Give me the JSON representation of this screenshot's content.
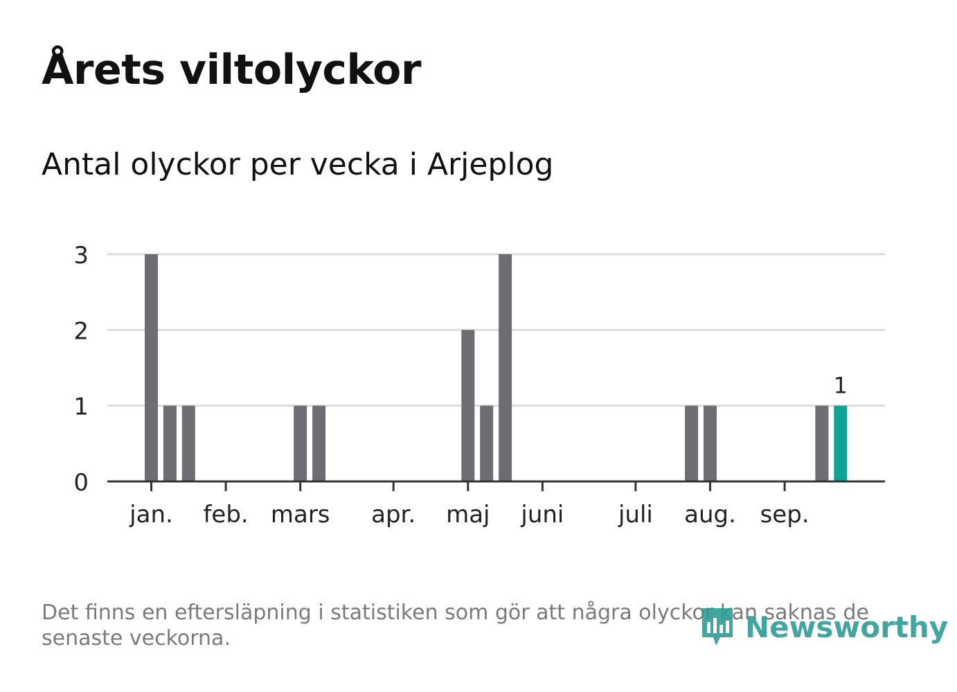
{
  "title": "Årets viltolyckor",
  "subtitle": "Antal olyckor per vecka i Arjeplog",
  "footnote": "Det finns en eftersläpning i statistiken som gör att några olyckor kan saknas de senaste veckorna.",
  "brand": {
    "name": "Newsworthy",
    "icon": "newsworthy-logo-icon",
    "color": "#2e9c96"
  },
  "colors": {
    "bar": "#6e6d72",
    "highlight": "#0fa396",
    "grid": "#dcdcdc",
    "axis": "#333333"
  },
  "chart_data": {
    "type": "bar",
    "title": "Antal olyckor per vecka i Arjeplog",
    "xlabel": "",
    "ylabel": "",
    "ylim": [
      0,
      3
    ],
    "yticks": [
      0,
      1,
      2,
      3
    ],
    "grid": true,
    "weeks": [
      1,
      2,
      3,
      4,
      5,
      6,
      7,
      8,
      9,
      10,
      11,
      12,
      13,
      14,
      15,
      16,
      17,
      18,
      19,
      20,
      21,
      22,
      23,
      24,
      25,
      26,
      27,
      28,
      29,
      30,
      31,
      32,
      33,
      34,
      35,
      36,
      37,
      38
    ],
    "values": [
      3,
      1,
      1,
      0,
      0,
      0,
      0,
      0,
      1,
      1,
      0,
      0,
      0,
      0,
      0,
      0,
      0,
      2,
      1,
      3,
      0,
      0,
      0,
      0,
      0,
      0,
      0,
      0,
      0,
      1,
      1,
      0,
      0,
      0,
      0,
      0,
      1,
      1
    ],
    "highlight_index": 37,
    "highlight_label": "1",
    "month_ticks": [
      {
        "label": "jan.",
        "week": 1
      },
      {
        "label": "feb.",
        "week": 5
      },
      {
        "label": "mars",
        "week": 9
      },
      {
        "label": "apr.",
        "week": 14
      },
      {
        "label": "maj",
        "week": 18
      },
      {
        "label": "juni",
        "week": 22
      },
      {
        "label": "juli",
        "week": 27
      },
      {
        "label": "aug.",
        "week": 31
      },
      {
        "label": "sep.",
        "week": 35
      }
    ]
  }
}
